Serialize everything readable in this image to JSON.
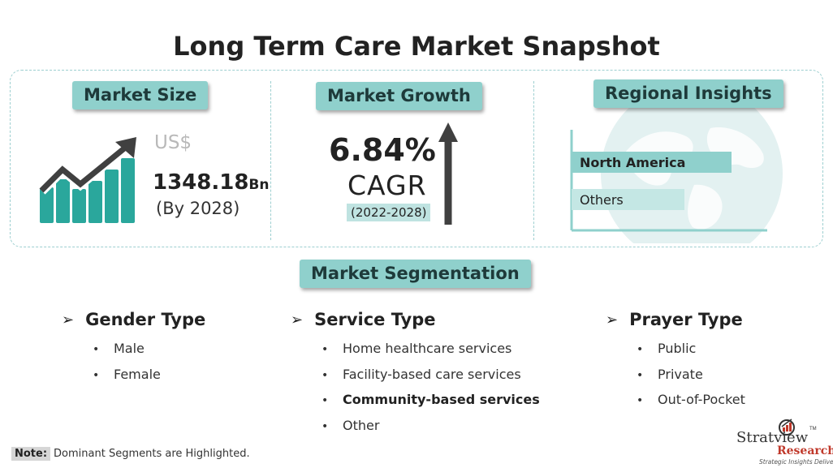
{
  "title": "Long Term Care Market Snapshot",
  "colors": {
    "accent": "#8fd0cc",
    "bar_fill": "#2aa79c",
    "bar_dark": "#404040",
    "dashed_border": "#9dcfd0",
    "logo_red": "#c0392b"
  },
  "market_size": {
    "heading": "Market Size",
    "currency": "US$",
    "value": "1348.18",
    "unit": "Bn",
    "year": "(By 2028)",
    "icon": "growth-bar-chart-icon"
  },
  "market_growth": {
    "heading": "Market Growth",
    "cagr_value": "6.84%",
    "cagr_label": "CAGR",
    "period": "(2022-2028)",
    "icon": "up-arrow-icon"
  },
  "regional_insights": {
    "heading": "Regional Insights",
    "icon": "globe-icon",
    "regions": [
      {
        "label": "North America",
        "share": 0.82,
        "highlighted": true
      },
      {
        "label": "Others",
        "share": 0.58,
        "highlighted": false
      }
    ]
  },
  "segmentation": {
    "heading": "Market Segmentation",
    "columns": [
      {
        "title": "Gender Type",
        "items": [
          {
            "label": "Male",
            "highlighted": false
          },
          {
            "label": "Female",
            "highlighted": false
          }
        ]
      },
      {
        "title": "Service Type",
        "items": [
          {
            "label": "Home healthcare services",
            "highlighted": false
          },
          {
            "label": "Facility-based care services",
            "highlighted": false
          },
          {
            "label": "Community-based services",
            "highlighted": true
          },
          {
            "label": "Other",
            "highlighted": false
          }
        ]
      },
      {
        "title": "Prayer Type",
        "items": [
          {
            "label": "Public",
            "highlighted": false
          },
          {
            "label": "Private",
            "highlighted": false
          },
          {
            "label": "Out-of-Pocket",
            "highlighted": false
          }
        ]
      }
    ]
  },
  "note": {
    "label": "Note:",
    "text": "Dominant Segments are Highlighted."
  },
  "logo": {
    "name": "Stratview",
    "sub": "Research",
    "tagline": "Strategic Insights Delivered",
    "tm": "TM"
  }
}
